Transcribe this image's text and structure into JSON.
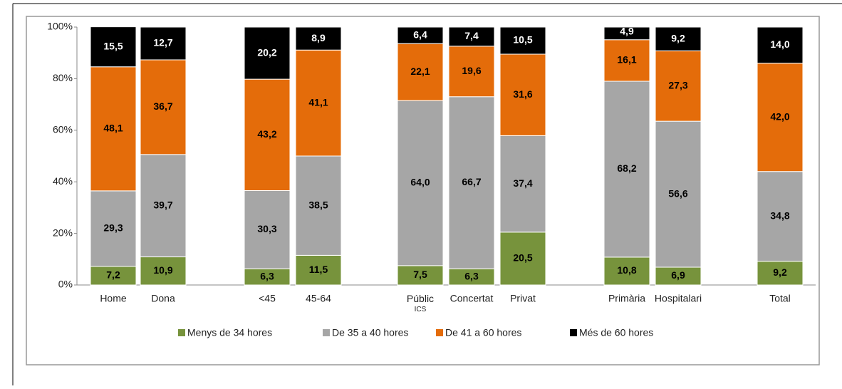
{
  "chart_data": {
    "type": "stacked_bar",
    "categories": [
      "Home",
      "Dona",
      "<45",
      "45-64",
      "Públic ICS",
      "Concertat",
      "Privat",
      "Primària",
      "Hospitalari",
      "Total"
    ],
    "series": [
      {
        "name": "Menys de 34 hores",
        "color": "#77933c",
        "values": [
          7.2,
          10.9,
          6.3,
          11.5,
          7.5,
          6.3,
          20.5,
          10.8,
          6.9,
          9.2
        ],
        "value_labels": [
          "7,2",
          "10,9",
          "6,3",
          "11,5",
          "7,5",
          "6,3",
          "20,5",
          "10,8",
          "6,9",
          "9,2"
        ]
      },
      {
        "name": "De 35 a 40 hores",
        "color": "#a6a6a6",
        "values": [
          29.3,
          39.7,
          30.3,
          38.5,
          64.0,
          66.7,
          37.4,
          68.2,
          56.6,
          34.8
        ],
        "value_labels": [
          "29,3",
          "39,7",
          "30,3",
          "38,5",
          "64,0",
          "66,7",
          "37,4",
          "68,2",
          "56,6",
          "34,8"
        ]
      },
      {
        "name": "De 41 a 60 hores",
        "color": "#e46c0a",
        "values": [
          48.1,
          36.7,
          43.2,
          41.1,
          22.1,
          19.6,
          31.6,
          16.1,
          27.3,
          42.0
        ],
        "value_labels": [
          "48,1",
          "36,7",
          "43,2",
          "41,1",
          "22,1",
          "19,6",
          "31,6",
          "16,1",
          "27,3",
          "42,0"
        ]
      },
      {
        "name": "Més de 60 hores",
        "color": "#000000",
        "values": [
          15.5,
          12.7,
          20.2,
          8.9,
          6.4,
          7.4,
          10.5,
          4.9,
          9.2,
          14.0
        ],
        "value_labels": [
          "15,5",
          "12,7",
          "20,2",
          "8,9",
          "6,4",
          "7,4",
          "10,5",
          "4,9",
          "9,2",
          "14,0"
        ]
      }
    ],
    "ylim": [
      0,
      100
    ],
    "yticks": [
      {
        "value": 0,
        "label": "0%"
      },
      {
        "value": 20,
        "label": "20%"
      },
      {
        "value": 40,
        "label": "40%"
      },
      {
        "value": 60,
        "label": "60%"
      },
      {
        "value": 80,
        "label": "80%"
      },
      {
        "value": 100,
        "label": "100%"
      }
    ],
    "legend": "bottom"
  }
}
